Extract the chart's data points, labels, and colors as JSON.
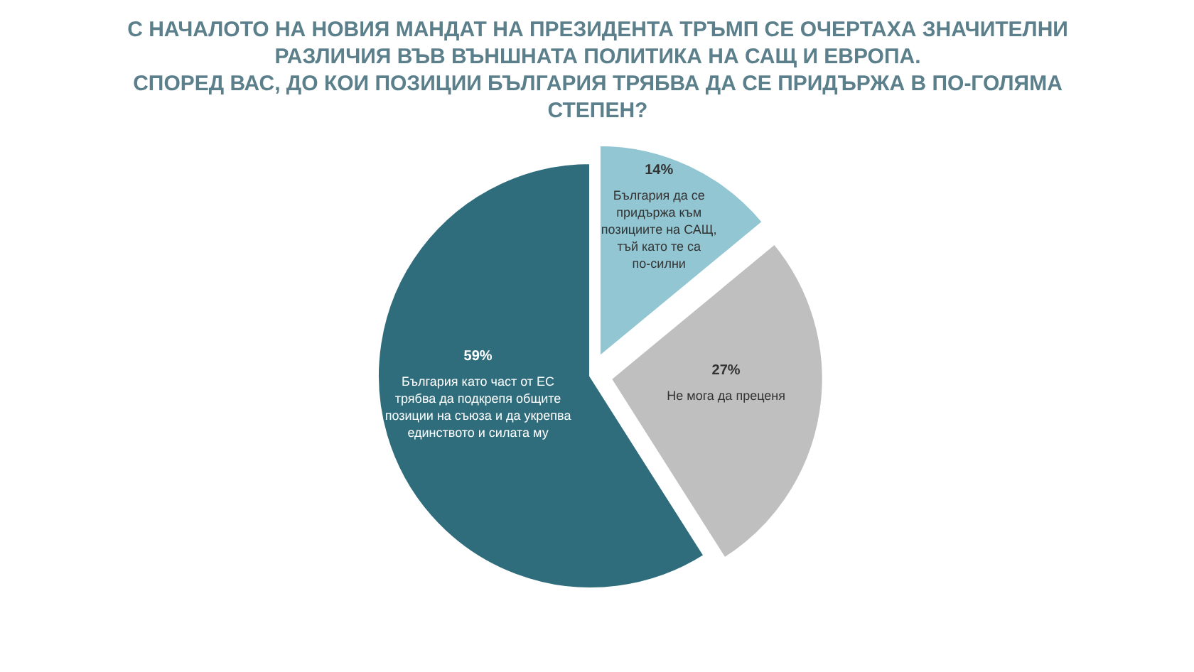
{
  "chart_data": {
    "type": "pie",
    "title": "С НАЧАЛОТО НА НОВИЯ МАНДАТ НА ПРЕЗИДЕНТА ТРЪМП СЕ ОЧЕРТАХА ЗНАЧИТЕЛНИ РАЗЛИЧИЯ ВЪВ ВЪНШНАТА ПОЛИТИКА НА САЩ И ЕВРОПА.\nСПОРЕД ВАС, ДО КОИ ПОЗИЦИИ БЪЛГАРИЯ ТРЯБВА ДА СЕ ПРИДЪРЖА В ПО-ГОЛЯМА СТЕПЕН?",
    "categories": [
      "България да се придържа към позициите на САЩ, тъй като те са по-силни",
      "Не мога да преценя",
      "България като част от ЕС трябва да подкрепя общите позиции на съюза и да укрепва единството и силата му"
    ],
    "values": [
      14,
      27,
      59
    ],
    "colors": [
      "#92c6d2",
      "#bfbfbf",
      "#2f6d7c"
    ],
    "value_labels": [
      "14%",
      "27%",
      "59%"
    ]
  }
}
